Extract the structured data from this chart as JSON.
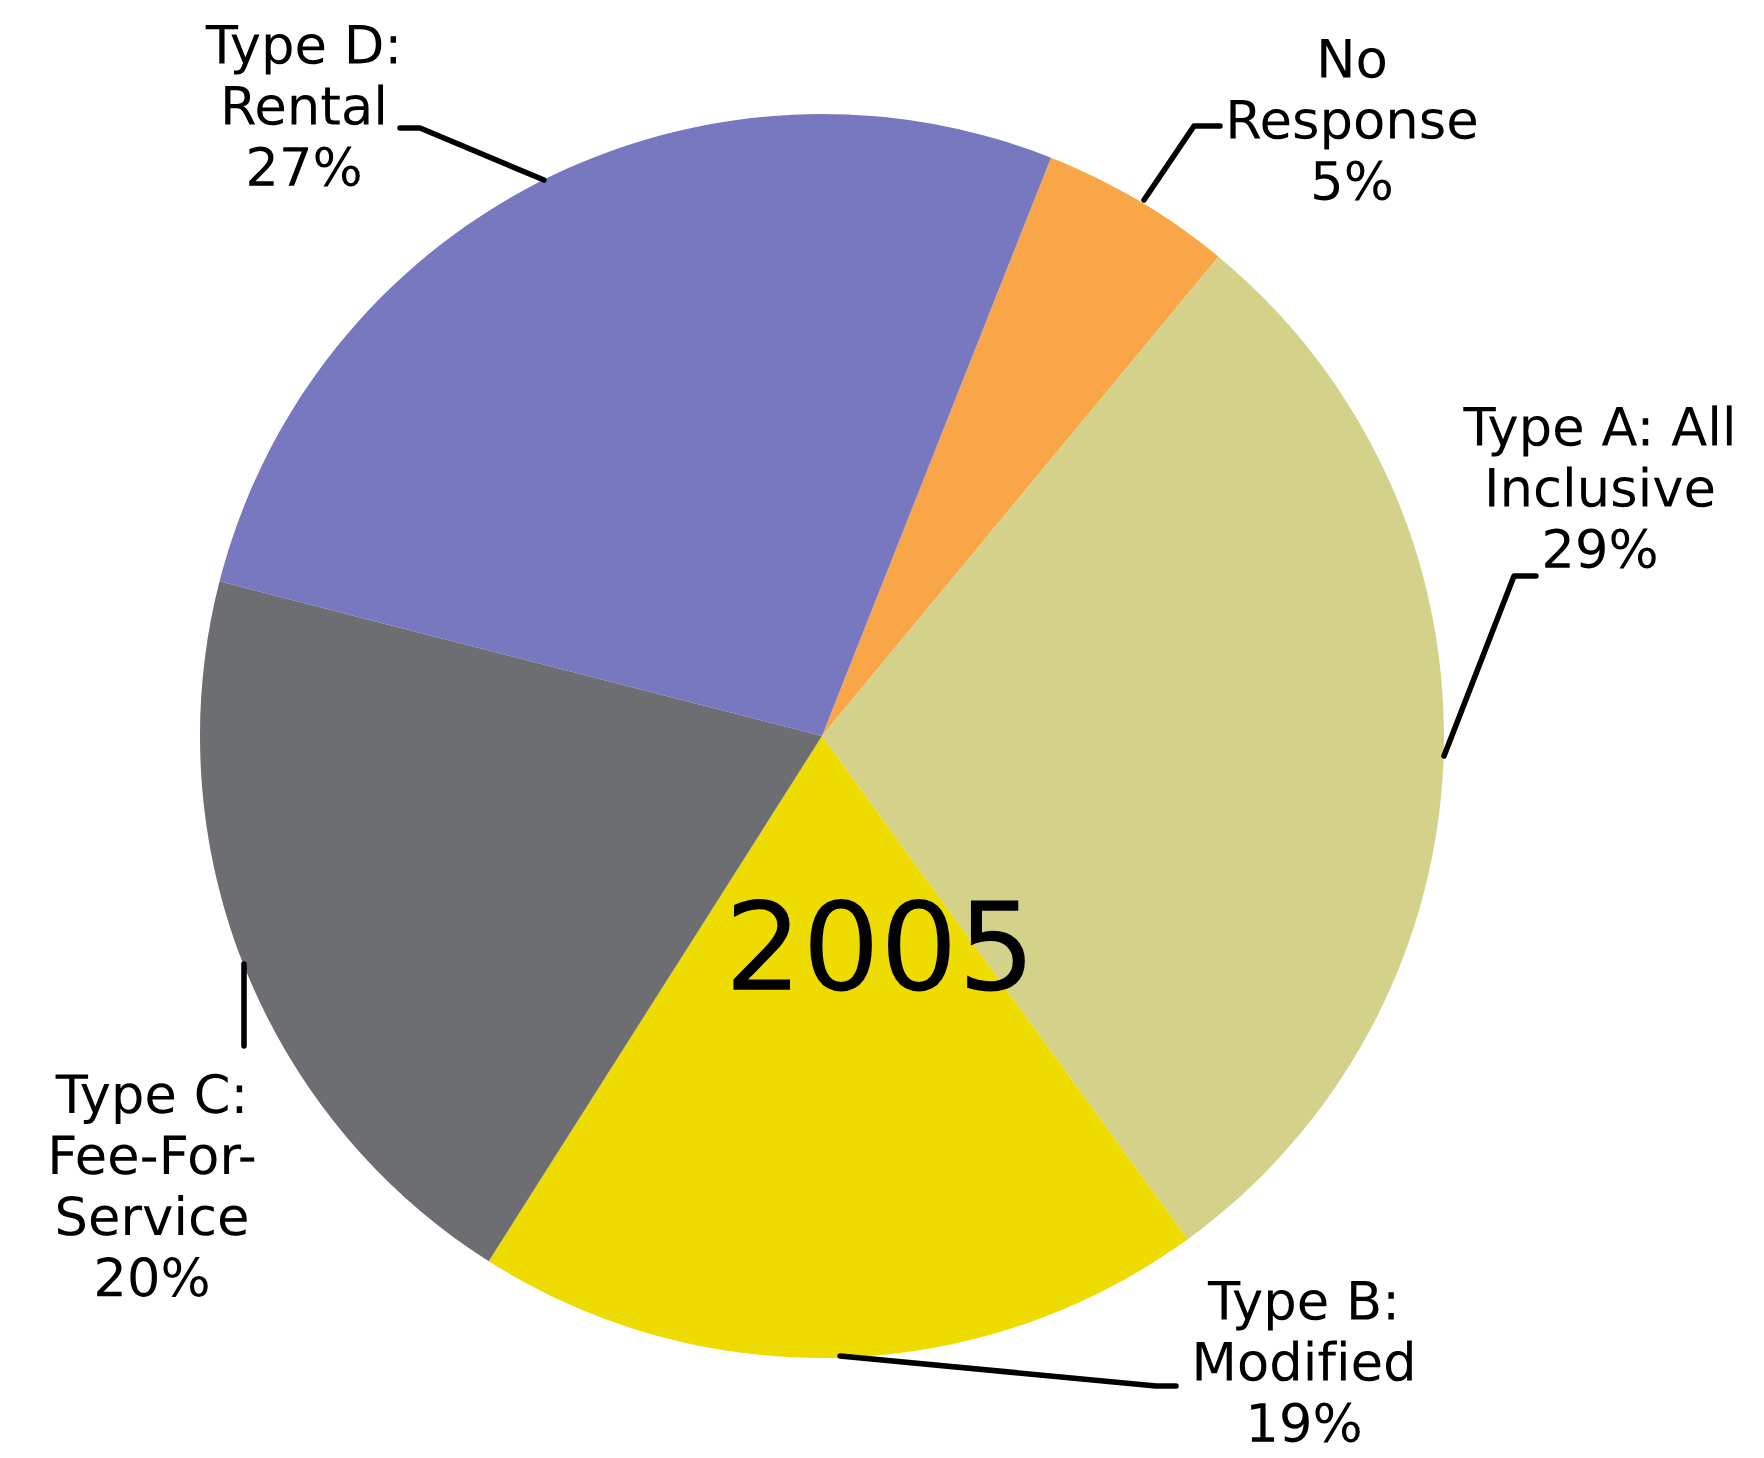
{
  "chart_data": {
    "type": "pie",
    "categories": [
      "No\nResponse",
      "Type A: All\nInclusive",
      "Type B:\nModified",
      "Type C:\nFee-For-\nService",
      "Type D:\nRental"
    ],
    "values": [
      5,
      29,
      19,
      20,
      27
    ],
    "value_labels": [
      "5%",
      "29%",
      "19%",
      "20%",
      "27%"
    ],
    "colors": [
      "#f9a648",
      "#d4d28a",
      "#eedc00",
      "#6d6e71",
      "#7878c0"
    ],
    "annotations": [
      "2005"
    ]
  }
}
